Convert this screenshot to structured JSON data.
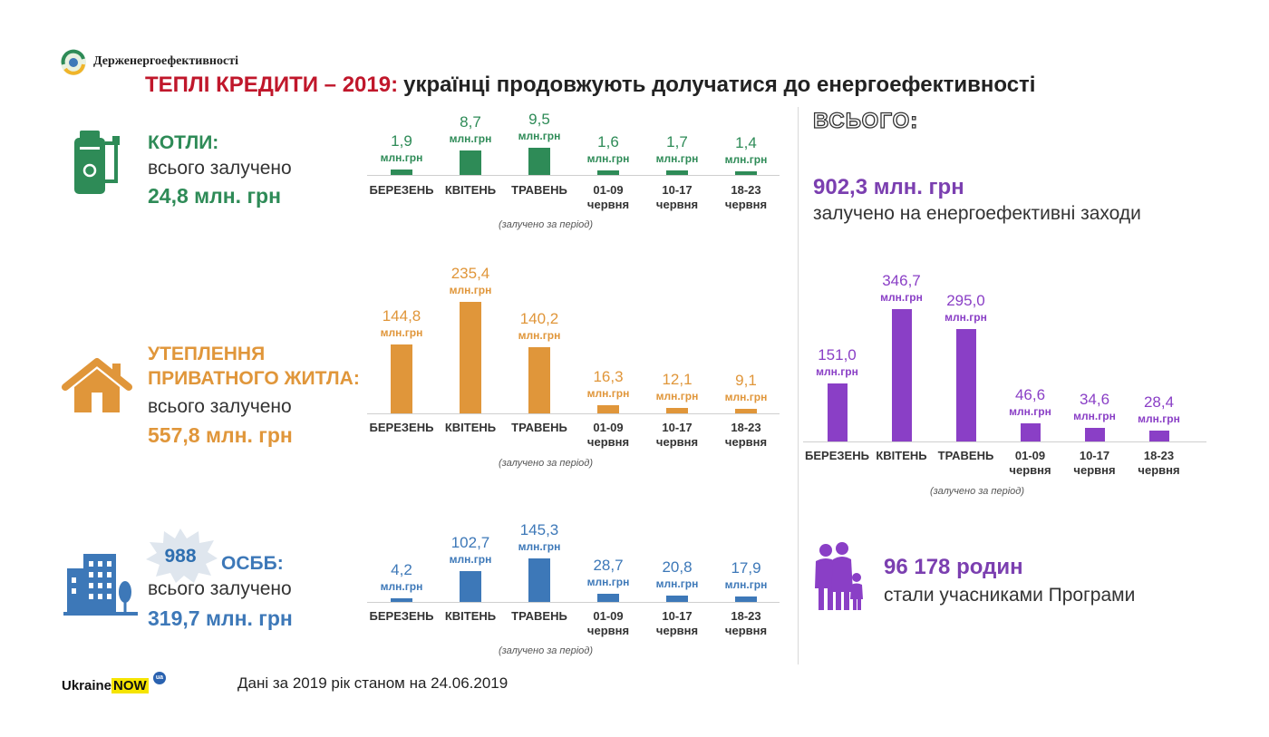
{
  "header": {
    "org_name": "Держенергоефективності",
    "headline_accent": "ТЕПЛІ КРЕДИТИ – 2019:",
    "headline_rest": "українці продовжують долучатися до енергоефективності"
  },
  "colors": {
    "boilers": "#2e8b57",
    "insulation": "#e0963a",
    "osbb": "#3d78b8",
    "total": "#8a3fc6",
    "headline_red": "#c0172b"
  },
  "sections": {
    "boilers": {
      "icon": "boiler-icon",
      "title": "КОТЛИ:",
      "subtitle": "всього залучено",
      "total": "24,8 млн. грн"
    },
    "insulation": {
      "icon": "house-icon",
      "title_line1": "УТЕПЛЕННЯ",
      "title_line2": "ПРИВАТНОГО ЖИТЛА:",
      "subtitle": "всього залучено",
      "total": "557,8 млн. грн"
    },
    "osbb": {
      "icon": "apartment-building-icon",
      "badge": "988",
      "title": "ОСББ:",
      "subtitle": "всього залучено",
      "total": "319,7 млн. грн"
    }
  },
  "total_panel": {
    "heading": "ВСЬОГО:",
    "value": "902,3 млн. грн",
    "subtitle": "залучено на енергоефективні заходи",
    "families_icon": "family-icon",
    "families_value": "96 178 родин",
    "families_sub": "стали учасниками Програми"
  },
  "footer": {
    "brand_ukraine": "Ukraine",
    "brand_now": "NOW",
    "brand_ua": "ua",
    "note": "Дані за 2019 рік станом на 24.06.2019"
  },
  "chart_data": [
    {
      "id": "boilers",
      "type": "bar",
      "categories": [
        "БЕРЕЗЕНЬ",
        "КВІТЕНЬ",
        "ТРАВЕНЬ",
        "01-09\nчервня",
        "10-17\nчервня",
        "18-23\nчервня"
      ],
      "values": [
        1.9,
        8.7,
        9.5,
        1.6,
        1.7,
        1.4
      ],
      "value_labels": [
        "1,9",
        "8,7",
        "9,5",
        "1,6",
        "1,7",
        "1,4"
      ],
      "unit_label": "млн.грн",
      "note": "(залучено  за період)",
      "color": "#2e8b57",
      "ylim": [
        0,
        9.5
      ]
    },
    {
      "id": "insulation",
      "type": "bar",
      "categories": [
        "БЕРЕЗЕНЬ",
        "КВІТЕНЬ",
        "ТРАВЕНЬ",
        "01-09\nчервня",
        "10-17\nчервня",
        "18-23\nчервня"
      ],
      "values": [
        144.8,
        235.4,
        140.2,
        16.3,
        12.1,
        9.1
      ],
      "value_labels": [
        "144,8",
        "235,4",
        "140,2",
        "16,3",
        "12,1",
        "9,1"
      ],
      "unit_label": "млн.грн",
      "note": "(залучено  за період)",
      "color": "#e0963a",
      "ylim": [
        0,
        235.4
      ]
    },
    {
      "id": "osbb",
      "type": "bar",
      "categories": [
        "БЕРЕЗЕНЬ",
        "КВІТЕНЬ",
        "ТРАВЕНЬ",
        "01-09\nчервня",
        "10-17\nчервня",
        "18-23\nчервня"
      ],
      "values": [
        4.2,
        102.7,
        145.3,
        28.7,
        20.8,
        17.9
      ],
      "value_labels": [
        "4,2",
        "102,7",
        "145,3",
        "28,7",
        "20,8",
        "17,9"
      ],
      "unit_label": "млн.грн",
      "note": "(залучено  за період)",
      "color": "#3d78b8",
      "ylim": [
        0,
        145.3
      ]
    },
    {
      "id": "total",
      "type": "bar",
      "categories": [
        "БЕРЕЗЕНЬ",
        "КВІТЕНЬ",
        "ТРАВЕНЬ",
        "01-09\nчервня",
        "10-17\nчервня",
        "18-23\nчервня"
      ],
      "values": [
        151.0,
        346.7,
        295.0,
        46.6,
        34.6,
        28.4
      ],
      "value_labels": [
        "151,0",
        "346,7",
        "295,0",
        "46,6",
        "34,6",
        "28,4"
      ],
      "unit_label": "млн.грн",
      "note": "(залучено  за період)",
      "color": "#8a3fc6",
      "ylim": [
        0,
        346.7
      ]
    }
  ]
}
